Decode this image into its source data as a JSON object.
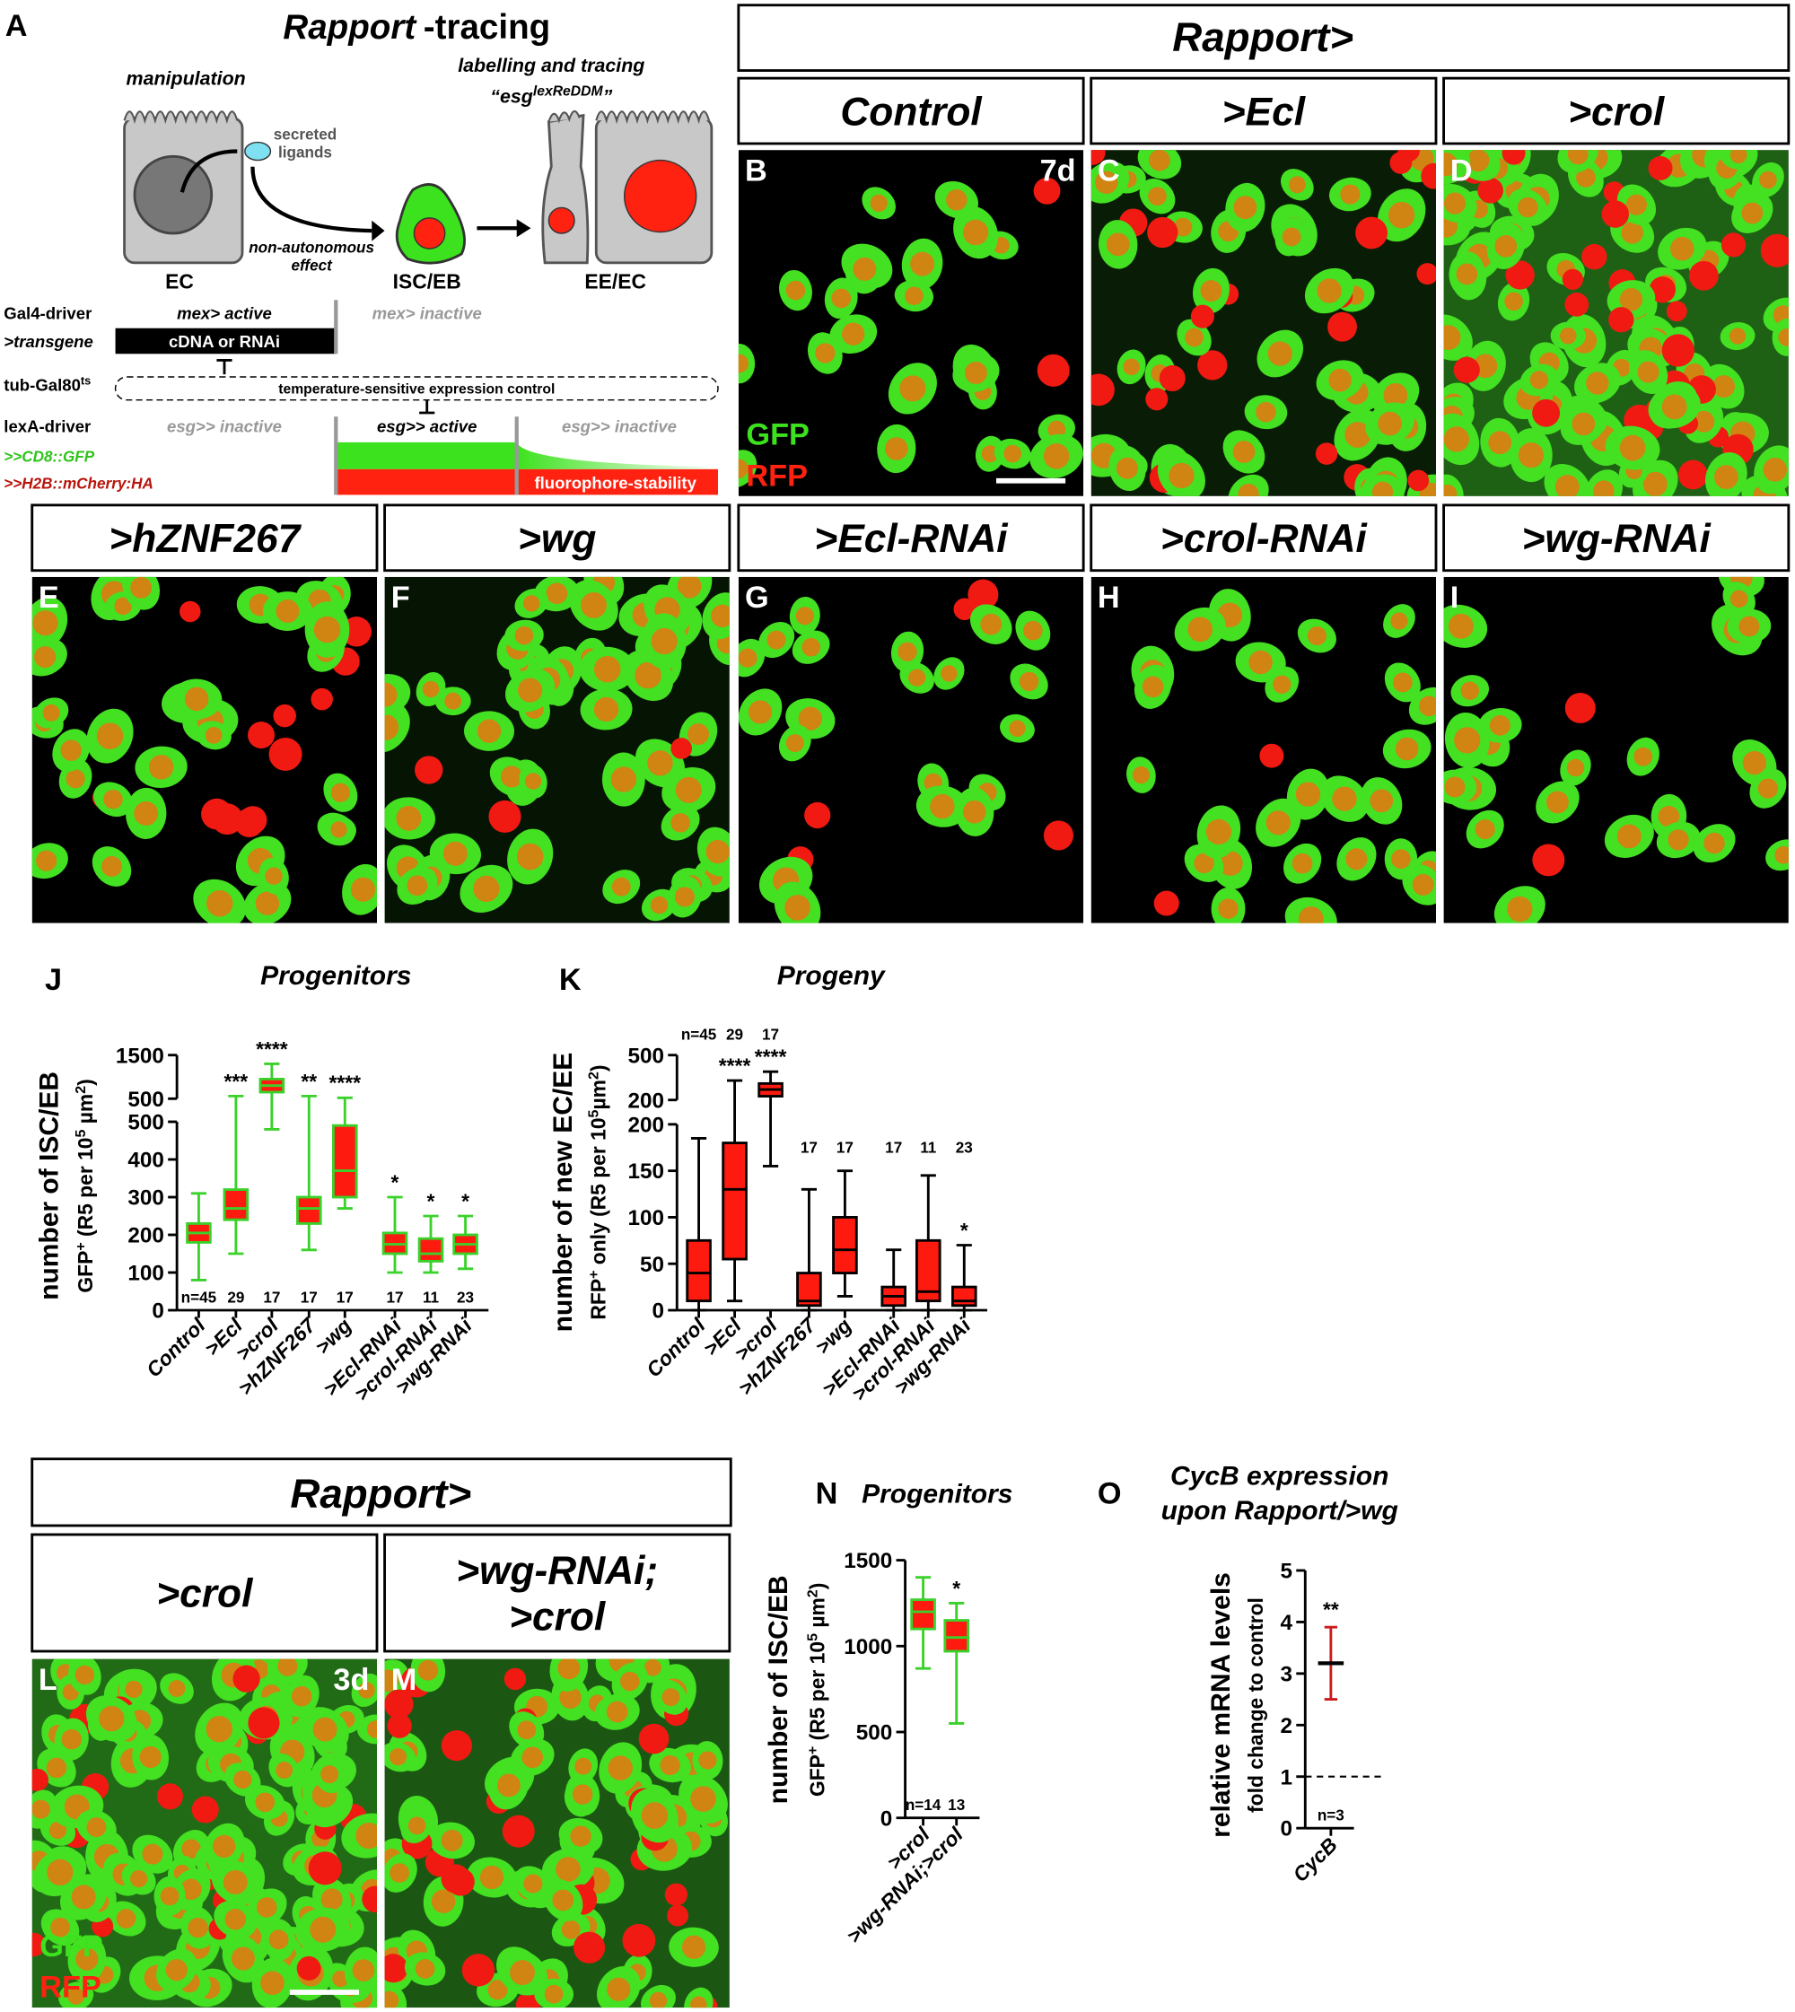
{
  "panel_a": {
    "label": "A",
    "title_italic": "Rapport",
    "title_rest": "-tracing",
    "manipulation": "manipulation",
    "ligands": [
      "secreted",
      "ligands"
    ],
    "tracing": "labelling and tracing",
    "esg": "“esg",
    "esg_sup": "lexReDDM",
    "esg_close": "”",
    "effect": [
      "non-autonomous",
      "effect"
    ],
    "cells": [
      "EC",
      "ISC/EB",
      "EE/EC"
    ],
    "gal4": "Gal4-driver",
    "mex_active": "mex> active",
    "mex_inactive": "mex> inactive",
    "transgene": ">transgene",
    "cdna": "cDNA or RNAi",
    "gal80": "tub-Gal80",
    "gal80_sup": "ts",
    "temp": "temperature-sensitive expression control",
    "lexa": "lexA-driver",
    "esg_inactive_1": "esg>> inactive",
    "esg_active": "esg>> active",
    "esg_inactive_2": "esg>> inactive",
    "gfp": ">>CD8::GFP",
    "mcherry": ">>H2B::mCherry:HA",
    "stability": "fluorophore-stability"
  },
  "images": {
    "header_top": "Rapport>",
    "header_bottom": "Rapport>",
    "gfp": "GFP",
    "rfp": "RFP",
    "panels": [
      {
        "label": "B",
        "title": [
          "Control"
        ],
        "time": "7d"
      },
      {
        "label": "C",
        "title": [
          ">Ecl"
        ]
      },
      {
        "label": "D",
        "title": [
          ">crol"
        ]
      },
      {
        "label": "E",
        "title": [
          ">hZNF267"
        ]
      },
      {
        "label": "F",
        "title": [
          ">wg"
        ]
      },
      {
        "label": "G",
        "title": [
          ">Ecl-RNAi"
        ]
      },
      {
        "label": "H",
        "title": [
          ">crol-RNAi"
        ]
      },
      {
        "label": "I",
        "title": [
          ">wg-RNAi"
        ]
      },
      {
        "label": "L",
        "title": [
          ">crol"
        ],
        "time": "3d"
      },
      {
        "label": "M",
        "title": [
          ">wg-RNAi;",
          ">crol"
        ]
      }
    ]
  },
  "chart_data": [
    {
      "type": "box",
      "label": "J",
      "title": "Progenitors",
      "ylabel": "number of ISC/EB",
      "ylabel_sub": [
        "GFP",
        "+",
        " (R5 per 10",
        "5",
        " µm",
        "2",
        ")"
      ],
      "categories": [
        "Control",
        ">Ecl",
        ">crol",
        ">hZNF267",
        ">wg",
        ">Ecl-RNAi",
        ">crol-RNAi",
        ">wg-RNAi"
      ],
      "boxes": {
        "min": [
          80,
          150,
          480,
          160,
          270,
          100,
          100,
          110
        ],
        "q1": [
          180,
          240,
          650,
          230,
          300,
          150,
          130,
          150
        ],
        "median": [
          205,
          270,
          800,
          270,
          370,
          175,
          150,
          175
        ],
        "q3": [
          230,
          320,
          950,
          300,
          490,
          205,
          190,
          200
        ],
        "max": [
          310,
          560,
          1300,
          560,
          520,
          300,
          250,
          250
        ]
      },
      "n_labels": [
        "n=45",
        "29",
        "17",
        "17",
        "17",
        "17",
        "11",
        "23"
      ],
      "significance": [
        null,
        "***",
        "****",
        "**",
        "****",
        "*",
        "*",
        "*"
      ],
      "box_fill": "#ff1a0f",
      "box_stroke": "#3ad12a",
      "ylim": [
        0,
        500
      ],
      "yticks": [
        0,
        100,
        200,
        300,
        400,
        500
      ],
      "ylim_upper": [
        500,
        1500
      ],
      "yticks_upper": [
        500,
        1500
      ]
    },
    {
      "type": "box",
      "label": "K",
      "title": "Progeny",
      "ylabel": "number of new EC/EE",
      "ylabel_sub": [
        "RFP",
        "+",
        " only (R5 per 10",
        "5",
        "µm",
        "2",
        ")"
      ],
      "categories": [
        "Control",
        ">Ecl",
        ">crol",
        ">hZNF267",
        ">wg",
        ">Ecl-RNAi",
        ">crol-RNAi",
        ">wg-RNAi"
      ],
      "boxes": {
        "min": [
          0,
          10,
          155,
          0,
          15,
          0,
          0,
          0
        ],
        "q1": [
          10,
          55,
          225,
          5,
          40,
          5,
          10,
          5
        ],
        "median": [
          40,
          130,
          270,
          10,
          65,
          15,
          20,
          10
        ],
        "q3": [
          75,
          180,
          310,
          40,
          100,
          25,
          75,
          25
        ],
        "max": [
          185,
          330,
          389,
          130,
          150,
          65,
          145,
          70
        ]
      },
      "n_labels": [
        "n=45",
        "29",
        "17",
        "17",
        "17",
        "17",
        "11",
        "23"
      ],
      "significance": [
        null,
        "****",
        "****",
        null,
        null,
        null,
        null,
        "*"
      ],
      "box_fill": "#ff1a0f",
      "box_stroke": "#000000",
      "ylim": [
        0,
        200
      ],
      "yticks": [
        0,
        50,
        100,
        150,
        200
      ],
      "ylim_upper": [
        200,
        500
      ],
      "yticks_upper": [
        200,
        500
      ]
    },
    {
      "type": "box",
      "label": "N",
      "title": "Progenitors",
      "ylabel": "number of ISC/EB",
      "ylabel_sub": [
        "GFP",
        "+",
        " (R5 per 10",
        "5",
        " µm",
        "2",
        ")"
      ],
      "categories": [
        ">crol",
        ">wg-RNAi;>crol"
      ],
      "boxes": {
        "min": [
          870,
          550
        ],
        "q1": [
          1100,
          970
        ],
        "median": [
          1200,
          1050
        ],
        "q3": [
          1270,
          1150
        ],
        "max": [
          1400,
          1250
        ]
      },
      "n_labels": [
        "n=14",
        "13"
      ],
      "significance": [
        null,
        "*"
      ],
      "box_fill": "#ff1a0f",
      "box_stroke": "#3ad12a",
      "ylim": [
        0,
        1500
      ],
      "yticks": [
        0,
        500,
        1000,
        1500
      ]
    },
    {
      "type": "errorbar",
      "label": "O",
      "title": [
        "CycB expression",
        "upon Rapport/>wg"
      ],
      "ylabel": "relative mRNA levels",
      "ylabel_sub": [
        "fold change to control"
      ],
      "categories": [
        "CycB"
      ],
      "values": [
        3.2
      ],
      "errors": [
        0.7
      ],
      "n_labels": [
        "n=3"
      ],
      "significance": [
        "**"
      ],
      "color": "#cc1a1a",
      "reference_line": 1,
      "ylim": [
        0,
        5
      ],
      "yticks": [
        0,
        1,
        2,
        3,
        4,
        5
      ]
    }
  ]
}
